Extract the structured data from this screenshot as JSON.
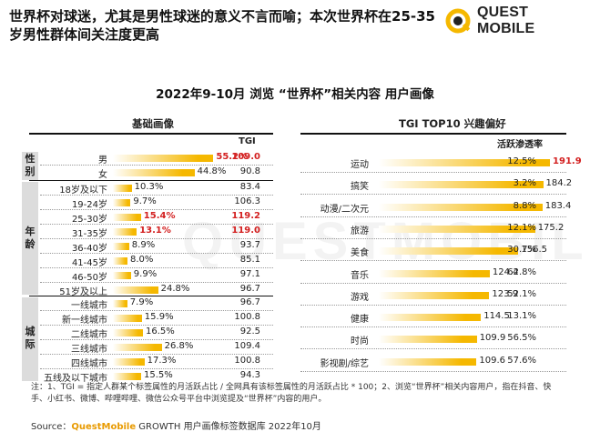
{
  "headline": "世界杯对球迷，尤其是男性球迷的意义不言而喻；本次世界杯在25-35岁男性群体间关注度更高",
  "logo": {
    "text": "QUEST MOBILE",
    "icon": "qm-ring-logo-icon"
  },
  "watermark": "QUESTMOBILE",
  "title": "2022年9-10月 浏览 “世界杯”相关内容 用户画像",
  "left_section_title": "基础画像",
  "right_section_title": "TGI TOP10 兴趣偏好",
  "tgi_header": "TGI",
  "penetration_header": "活跃渗透率",
  "left_categories": [
    {
      "name": "性别",
      "chars": [
        "性",
        "别"
      ]
    },
    {
      "name": "年龄",
      "chars": [
        "年",
        "龄"
      ]
    },
    {
      "name": "城际",
      "chars": [
        "城",
        "际"
      ]
    }
  ],
  "chart_data": [
    {
      "type": "bar",
      "orientation": "horizontal",
      "title": "基础画像",
      "categories": [
        "男",
        "女",
        "18岁及以下",
        "19-24岁",
        "25-30岁",
        "31-35岁",
        "36-40岁",
        "41-45岁",
        "46-50岁",
        "51岁及以上",
        "一线城市",
        "新一线城市",
        "二线城市",
        "三线城市",
        "四线城市",
        "五线及以下城市"
      ],
      "values": [
        55.2,
        44.8,
        10.3,
        9.7,
        15.4,
        13.1,
        8.9,
        8.0,
        9.9,
        24.8,
        7.9,
        15.9,
        16.5,
        26.8,
        17.3,
        15.5
      ],
      "labels": [
        "55.2%",
        "44.8%",
        "10.3%",
        "9.7%",
        "15.4%",
        "13.1%",
        "8.9%",
        "8.0%",
        "9.9%",
        "24.8%",
        "7.9%",
        "15.9%",
        "16.5%",
        "26.8%",
        "17.3%",
        "15.5%"
      ],
      "tgi": [
        "109.0",
        "90.8",
        "83.4",
        "106.3",
        "119.2",
        "119.0",
        "93.7",
        "85.1",
        "97.1",
        "96.7",
        "96.7",
        "100.8",
        "92.5",
        "109.4",
        "100.8",
        "94.3"
      ],
      "highlight": [
        true,
        false,
        false,
        false,
        true,
        true,
        false,
        false,
        false,
        false,
        false,
        false,
        false,
        false,
        false,
        false
      ],
      "unit": "%",
      "groups": [
        {
          "name": "性别",
          "rows": 2
        },
        {
          "name": "年龄",
          "rows": 8
        },
        {
          "name": "城际",
          "rows": 6
        }
      ]
    },
    {
      "type": "bar",
      "orientation": "horizontal",
      "title": "TGI TOP10 兴趣偏好",
      "categories": [
        "运动",
        "搞笑",
        "动漫/二次元",
        "旅游",
        "美食",
        "音乐",
        "游戏",
        "健康",
        "时尚",
        "影视剧/综艺"
      ],
      "values": [
        191.9,
        184.2,
        183.4,
        175.2,
        156.5,
        124.4,
        123.9,
        114.5,
        109.9,
        109.6
      ],
      "labels": [
        "191.9",
        "184.2",
        "183.4",
        "175.2",
        "156.5",
        "124.4",
        "123.9",
        "114.5",
        "109.9",
        "109.6"
      ],
      "penetration": [
        "12.5%",
        "3.2%",
        "8.8%",
        "12.1%",
        "30.7%",
        "62.8%",
        "52.1%",
        "13.1%",
        "56.5%",
        "57.6%"
      ],
      "highlight": [
        true,
        false,
        false,
        false,
        false,
        false,
        false,
        false,
        false,
        false
      ]
    }
  ],
  "colors": {
    "bar": "#f5b800",
    "highlight": "#d32020",
    "category_bg": "#dcdcdc",
    "logo_yellow": "#f5b800"
  },
  "note": "注：1、TGI = 指定人群某个标签属性的月活跃占比 / 全网具有该标签属性的月活跃占比 * 100；2、浏览“世界杯”相关内容用户，指在抖音、快手、小红书、微博、哔哩哔哩、微信公众号平台中浏览提及“世界杯”内容的用户。",
  "source": {
    "prefix": "Source：",
    "brand": "QuestMobile",
    "suffix": " GROWTH 用户画像标签数据库 2022年10月"
  }
}
